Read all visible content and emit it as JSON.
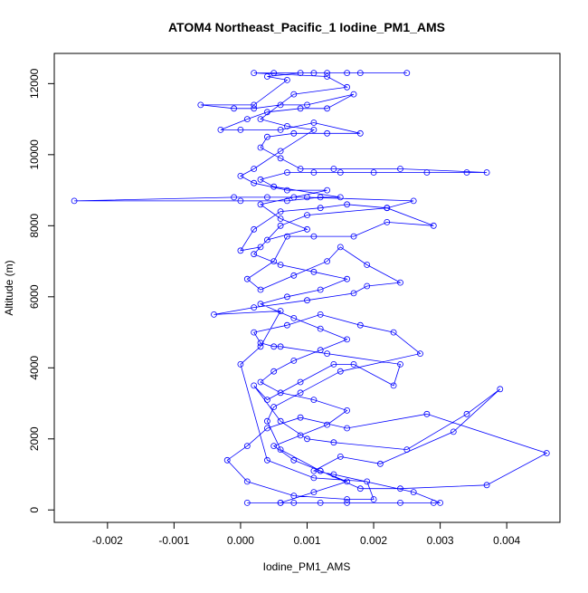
{
  "chart_data": {
    "type": "line",
    "title": "ATOM4 Northeast_Pacific_1 Iodine_PM1_AMS",
    "xlabel": "Iodine_PM1_AMS",
    "ylabel": "Altitude (m)",
    "xlim": [
      -0.0028,
      0.0048
    ],
    "ylim": [
      -350,
      12850
    ],
    "x_ticks": [
      -0.002,
      -0.001,
      0.0,
      0.001,
      0.002,
      0.003,
      0.004
    ],
    "x_tick_labels": [
      "-0.002",
      "-0.001",
      "0.000",
      "0.001",
      "0.002",
      "0.003",
      "0.004"
    ],
    "y_ticks": [
      0,
      2000,
      4000,
      6000,
      8000,
      10000,
      12000
    ],
    "y_tick_labels": [
      "0",
      "2000",
      "4000",
      "6000",
      "8000",
      "10000",
      "12000"
    ],
    "grid": false,
    "series": [
      {
        "color": "#0000ff",
        "marker": "open-circle",
        "points": [
          [
            0.0001,
            200
          ],
          [
            0.0006,
            200
          ],
          [
            0.0008,
            200
          ],
          [
            0.0012,
            200
          ],
          [
            0.0016,
            200
          ],
          [
            0.0024,
            200
          ],
          [
            0.0029,
            200
          ],
          [
            0.003,
            200
          ],
          [
            0.0026,
            500
          ],
          [
            0.0014,
            1000
          ],
          [
            0.0011,
            1100
          ],
          [
            0.0015,
            1500
          ],
          [
            0.0021,
            1300
          ],
          [
            0.0032,
            2200
          ],
          [
            0.0039,
            3400
          ],
          [
            0.0034,
            2700
          ],
          [
            0.0025,
            1700
          ],
          [
            0.0014,
            1900
          ],
          [
            0.001,
            2000
          ],
          [
            0.0006,
            2500
          ],
          [
            0.0002,
            3500
          ],
          [
            0.0004,
            3100
          ],
          [
            0.0009,
            3600
          ],
          [
            0.0014,
            4100
          ],
          [
            0.0017,
            4100
          ],
          [
            0.0023,
            3500
          ],
          [
            0.0024,
            4100
          ],
          [
            0.0013,
            4400
          ],
          [
            0.0006,
            4600
          ],
          [
            0.0005,
            4600
          ],
          [
            0.0003,
            4700
          ],
          [
            0.0002,
            5000
          ],
          [
            0.0007,
            5200
          ],
          [
            0.0012,
            5500
          ],
          [
            0.0018,
            5200
          ],
          [
            0.0023,
            5000
          ],
          [
            0.0027,
            4400
          ],
          [
            0.0015,
            3900
          ],
          [
            0.0009,
            3300
          ],
          [
            0.0005,
            2900
          ],
          [
            0.0004,
            2500
          ],
          [
            0.0006,
            1700
          ],
          [
            0.0012,
            1100
          ],
          [
            0.0018,
            600
          ],
          [
            0.0024,
            600
          ],
          [
            0.0037,
            700
          ],
          [
            0.0046,
            1600
          ],
          [
            0.0028,
            2700
          ],
          [
            0.0016,
            2300
          ],
          [
            0.0009,
            2600
          ],
          [
            0.0004,
            2300
          ],
          [
            0.0001,
            1800
          ],
          [
            -0.0002,
            1400
          ],
          [
            0.0001,
            800
          ],
          [
            0.0008,
            400
          ],
          [
            0.0016,
            300
          ],
          [
            0.002,
            300
          ],
          [
            0.0019,
            800
          ],
          [
            0.0011,
            900
          ],
          [
            0.0004,
            1400
          ],
          [
            0.0,
            4100
          ],
          [
            0.0003,
            4600
          ],
          [
            0.0006,
            5600
          ],
          [
            -0.0004,
            5500
          ],
          [
            0.0002,
            5700
          ],
          [
            0.001,
            5900
          ],
          [
            0.0017,
            6100
          ],
          [
            0.0019,
            6300
          ],
          [
            0.0024,
            6400
          ],
          [
            0.0019,
            6900
          ],
          [
            0.0015,
            7400
          ],
          [
            0.0013,
            7000
          ],
          [
            0.0008,
            6600
          ],
          [
            0.0003,
            6200
          ],
          [
            0.0001,
            6500
          ],
          [
            0.0005,
            7000
          ],
          [
            0.0007,
            7700
          ],
          [
            0.0011,
            7700
          ],
          [
            0.0017,
            7700
          ],
          [
            0.0022,
            8100
          ],
          [
            0.0029,
            8000
          ],
          [
            0.0022,
            8500
          ],
          [
            0.001,
            8300
          ],
          [
            0.0006,
            8000
          ],
          [
            0.0003,
            7400
          ],
          [
            0.0,
            7300
          ],
          [
            0.0002,
            7900
          ],
          [
            0.0006,
            8400
          ],
          [
            0.0012,
            8500
          ],
          [
            0.0016,
            8600
          ],
          [
            0.0022,
            8500
          ],
          [
            0.0026,
            8700
          ],
          [
            0.001,
            8800
          ],
          [
            0.0004,
            8800
          ],
          [
            -0.0001,
            8800
          ],
          [
            -0.0025,
            8700
          ],
          [
            0.0,
            8700
          ],
          [
            0.0007,
            8700
          ],
          [
            0.0012,
            8800
          ],
          [
            0.0015,
            8800
          ],
          [
            0.0005,
            9100
          ],
          [
            0.0003,
            9300
          ],
          [
            0.0007,
            9500
          ],
          [
            0.0011,
            9500
          ],
          [
            0.0015,
            9500
          ],
          [
            0.002,
            9500
          ],
          [
            0.0028,
            9500
          ],
          [
            0.0034,
            9500
          ],
          [
            0.0037,
            9500
          ],
          [
            0.0024,
            9600
          ],
          [
            0.0014,
            9600
          ],
          [
            0.0009,
            9600
          ],
          [
            0.0006,
            9900
          ],
          [
            0.0003,
            10200
          ],
          [
            0.0004,
            10500
          ],
          [
            0.0008,
            10600
          ],
          [
            0.0013,
            10600
          ],
          [
            0.0018,
            10600
          ],
          [
            0.0011,
            10900
          ],
          [
            0.0006,
            10700
          ],
          [
            0.0,
            10700
          ],
          [
            -0.0003,
            10700
          ],
          [
            0.0001,
            11000
          ],
          [
            0.0004,
            11200
          ],
          [
            0.0009,
            11300
          ],
          [
            0.0013,
            11300
          ],
          [
            0.0017,
            11700
          ],
          [
            0.001,
            11400
          ],
          [
            0.0006,
            11400
          ],
          [
            0.0002,
            11300
          ],
          [
            -0.0001,
            11300
          ],
          [
            -0.0006,
            11400
          ],
          [
            0.0002,
            11400
          ],
          [
            0.0007,
            12100
          ],
          [
            0.0004,
            12200
          ],
          [
            0.0009,
            12300
          ],
          [
            0.0013,
            12300
          ],
          [
            0.0018,
            12300
          ],
          [
            0.0025,
            12300
          ],
          [
            0.0016,
            12300
          ],
          [
            0.0011,
            12300
          ],
          [
            0.0005,
            12300
          ],
          [
            0.0002,
            12300
          ],
          [
            0.0013,
            12200
          ],
          [
            0.0016,
            11900
          ],
          [
            0.0008,
            11700
          ],
          [
            0.0003,
            11000
          ],
          [
            0.0007,
            10800
          ],
          [
            0.0011,
            10700
          ],
          [
            0.0006,
            10100
          ],
          [
            0.0002,
            9600
          ],
          [
            0.0,
            9400
          ],
          [
            0.0002,
            9200
          ],
          [
            0.0007,
            9000
          ],
          [
            0.0013,
            9000
          ],
          [
            0.0008,
            8800
          ],
          [
            0.0003,
            8600
          ],
          [
            0.0006,
            8200
          ],
          [
            0.001,
            7900
          ],
          [
            0.0004,
            7600
          ],
          [
            0.0002,
            7200
          ],
          [
            0.0006,
            6900
          ],
          [
            0.0011,
            6700
          ],
          [
            0.0016,
            6500
          ],
          [
            0.0012,
            6200
          ],
          [
            0.0007,
            6000
          ],
          [
            0.0003,
            5800
          ],
          [
            0.0008,
            5400
          ],
          [
            0.0012,
            5100
          ],
          [
            0.0016,
            4800
          ],
          [
            0.0012,
            4500
          ],
          [
            0.0008,
            4200
          ],
          [
            0.0005,
            3900
          ],
          [
            0.0003,
            3600
          ],
          [
            0.0006,
            3300
          ],
          [
            0.0011,
            3100
          ],
          [
            0.0016,
            2800
          ],
          [
            0.0013,
            2400
          ],
          [
            0.0009,
            2100
          ],
          [
            0.0005,
            1800
          ],
          [
            0.0008,
            1400
          ],
          [
            0.0012,
            1100
          ],
          [
            0.0016,
            800
          ],
          [
            0.0011,
            500
          ],
          [
            0.0006,
            200
          ]
        ]
      }
    ]
  }
}
